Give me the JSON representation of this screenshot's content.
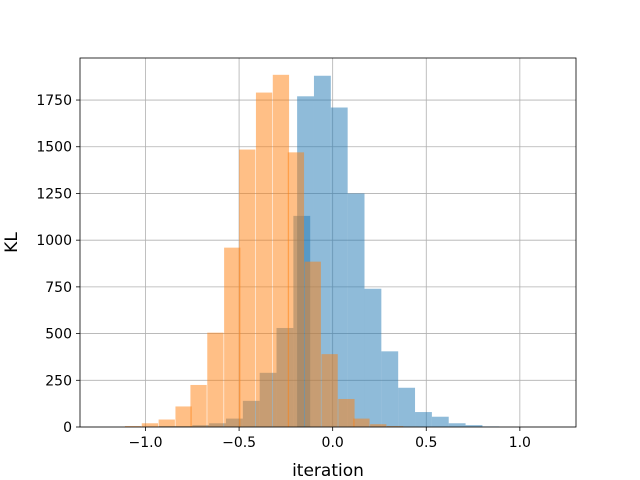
{
  "chart_data": {
    "type": "bar",
    "xlabel": "iteration",
    "ylabel": "KL",
    "xlim": [
      -1.35,
      1.3
    ],
    "ylim": [
      0,
      1975
    ],
    "grid": true,
    "x_ticks": [
      -1.0,
      -0.5,
      0.0,
      0.5,
      1.0
    ],
    "x_tick_labels": [
      "−1.0",
      "−0.5",
      "0.0",
      "0.5",
      "1.0"
    ],
    "y_ticks": [
      0,
      250,
      500,
      750,
      1000,
      1250,
      1500,
      1750
    ],
    "y_tick_labels": [
      "0",
      "250",
      "500",
      "750",
      "1000",
      "1250",
      "1500",
      "1750"
    ],
    "colors": {
      "series_blue": "#1f77b4",
      "series_orange": "#ff7f0e",
      "grid": "#b0b0b0",
      "axes": "#000000"
    },
    "bar_opacity": 0.5,
    "series": [
      {
        "color": "#1f77b4",
        "bin_width": 0.09,
        "bins": [
          [
            -1.02,
            2
          ],
          [
            -0.93,
            5
          ],
          [
            -0.84,
            5
          ],
          [
            -0.75,
            10
          ],
          [
            -0.66,
            20
          ],
          [
            -0.57,
            45
          ],
          [
            -0.48,
            140
          ],
          [
            -0.39,
            290
          ],
          [
            -0.3,
            530
          ],
          [
            -0.21,
            1130
          ],
          [
            -0.19,
            1770
          ],
          [
            -0.1,
            1880
          ],
          [
            -0.01,
            1710
          ],
          [
            0.08,
            1250
          ],
          [
            0.17,
            740
          ],
          [
            0.26,
            405
          ],
          [
            0.35,
            210
          ],
          [
            0.44,
            80
          ],
          [
            0.53,
            55
          ],
          [
            0.62,
            20
          ],
          [
            0.71,
            10
          ],
          [
            0.8,
            3
          ]
        ]
      },
      {
        "color": "#ff7f0e",
        "bin_width": 0.087,
        "bins": [
          [
            -1.11,
            5
          ],
          [
            -1.02,
            20
          ],
          [
            -0.93,
            40
          ],
          [
            -0.84,
            110
          ],
          [
            -0.76,
            225
          ],
          [
            -0.67,
            505
          ],
          [
            -0.58,
            960
          ],
          [
            -0.5,
            1485
          ],
          [
            -0.41,
            1790
          ],
          [
            -0.32,
            1885
          ],
          [
            -0.24,
            1470
          ],
          [
            -0.15,
            885
          ],
          [
            -0.06,
            390
          ],
          [
            0.03,
            150
          ],
          [
            0.11,
            45
          ],
          [
            0.2,
            15
          ],
          [
            0.29,
            5
          ],
          [
            0.37,
            2
          ]
        ]
      }
    ]
  }
}
